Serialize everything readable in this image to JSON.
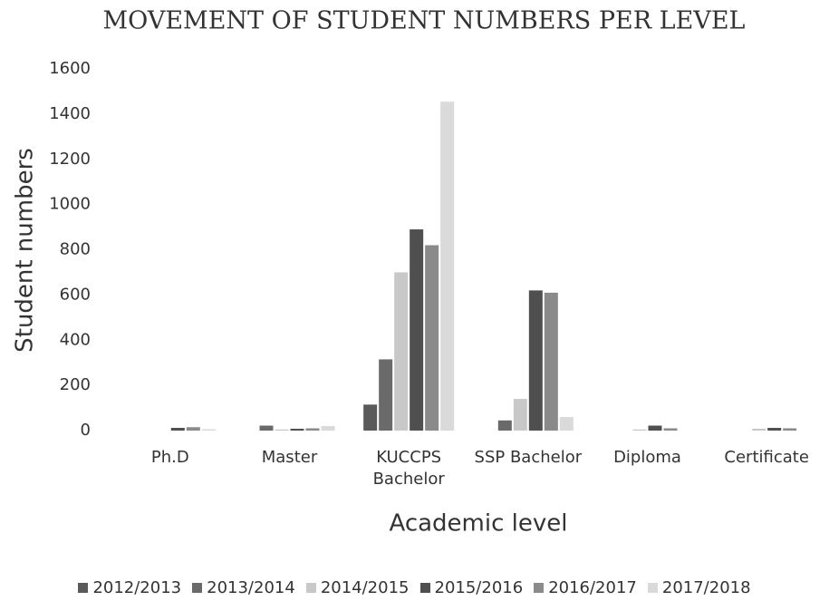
{
  "chart_data": {
    "type": "bar",
    "title": "MOVEMENT OF STUDENT NUMBERS PER LEVEL",
    "xlabel": "Academic level",
    "ylabel": "Student numbers",
    "categories": [
      "Ph.D",
      "Master",
      "KUCCPS Bachelor",
      "SSP Bachelor",
      "Diploma",
      "Certificate"
    ],
    "series": [
      {
        "name": "2012/2013",
        "color": "#5a5a5a",
        "values": [
          0,
          0,
          115,
          0,
          0,
          0
        ]
      },
      {
        "name": "2013/2014",
        "color": "#6a6a6a",
        "values": [
          0,
          22,
          315,
          45,
          0,
          0
        ]
      },
      {
        "name": "2014/2015",
        "color": "#c8c8c8",
        "values": [
          0,
          5,
          700,
          140,
          5,
          8
        ]
      },
      {
        "name": "2015/2016",
        "color": "#4f4f4f",
        "values": [
          12,
          8,
          890,
          620,
          22,
          12
        ]
      },
      {
        "name": "2016/2017",
        "color": "#8a8a8a",
        "values": [
          15,
          10,
          820,
          610,
          10,
          10
        ]
      },
      {
        "name": "2017/2018",
        "color": "#dadada",
        "values": [
          6,
          20,
          1455,
          60,
          0,
          0
        ]
      }
    ],
    "ylim": [
      0,
      1600
    ],
    "yticks": [
      0,
      200,
      400,
      600,
      800,
      1000,
      1200,
      1400,
      1600
    ],
    "grid": false,
    "legend": "bottom"
  }
}
